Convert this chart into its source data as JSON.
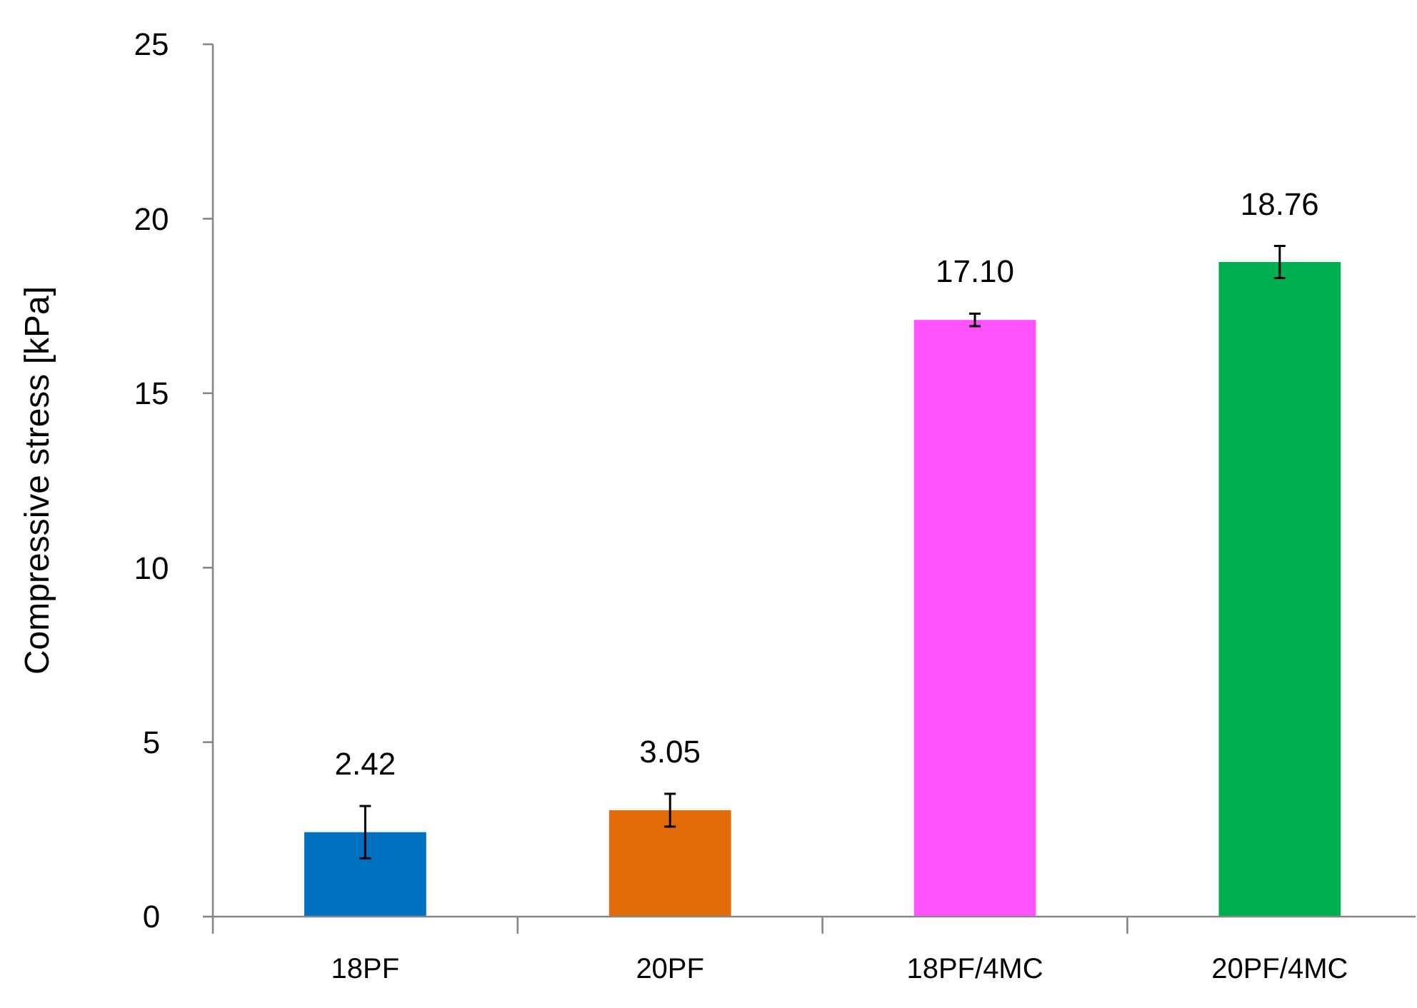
{
  "chart_data": {
    "type": "bar",
    "ylabel": "Compressive stress [kPa]",
    "categories": [
      "18PF",
      "20PF",
      "18PF/4MC",
      "20PF/4MC"
    ],
    "values": [
      2.42,
      3.05,
      17.1,
      18.76
    ],
    "colors": [
      "#0070c0",
      "#e36c0a",
      "#ff52ff",
      "#00b050"
    ],
    "errors": [
      0.75,
      0.47,
      0.18,
      0.46
    ],
    "value_labels": [
      "2.42",
      "3.05",
      "17.10",
      "18.76"
    ],
    "ylim": [
      0,
      25
    ],
    "yticks": [
      0,
      5,
      10,
      15,
      20,
      25
    ],
    "grid": false
  }
}
